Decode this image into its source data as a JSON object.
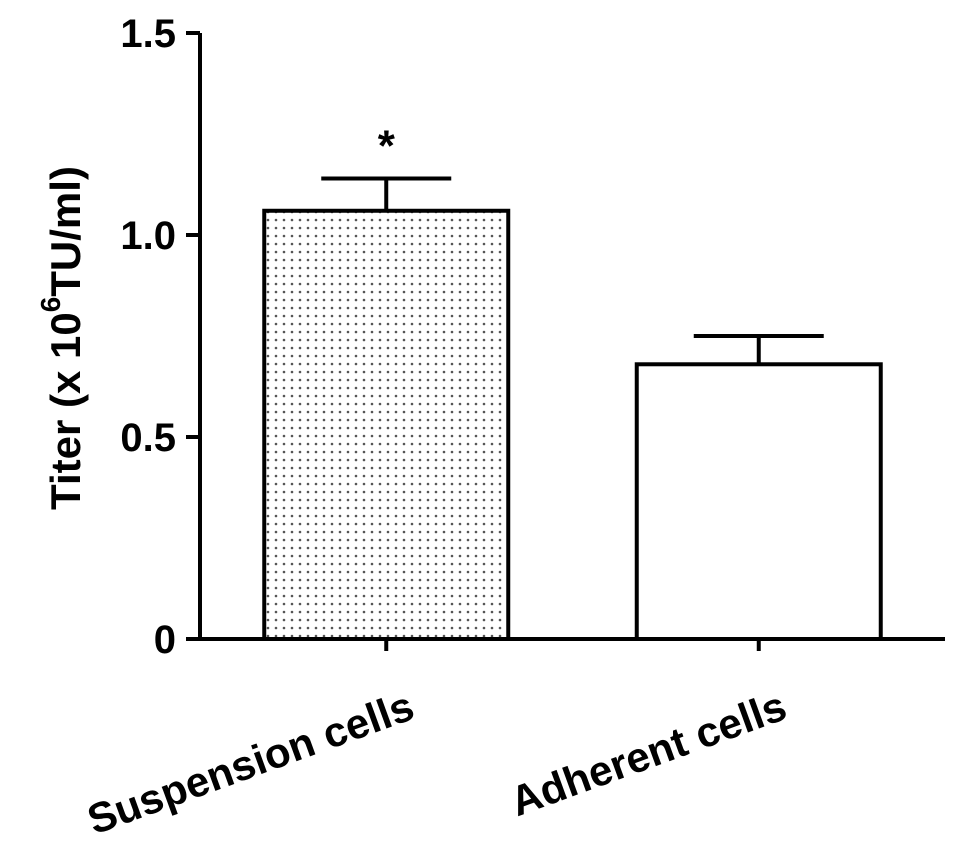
{
  "chart_data": {
    "type": "bar",
    "title": "",
    "xlabel": "",
    "ylabel": {
      "prefix": "Titer (x 10",
      "superscript": "6",
      "suffix": "TU/ml)"
    },
    "categories": [
      "Suspension cells",
      "Adherent cells"
    ],
    "values": [
      1.06,
      0.68
    ],
    "errors": [
      0.08,
      0.07
    ],
    "significance": [
      "*",
      ""
    ],
    "bar_fills": [
      "dotted",
      "none"
    ],
    "ylim": [
      0,
      1.5
    ],
    "yticks": [
      0,
      0.5,
      1.0,
      1.5
    ],
    "ytick_labels": [
      "0",
      "0.5",
      "1.0",
      "1.5"
    ],
    "grid": false,
    "legend": false,
    "colors": {
      "bar_stroke": "#000000",
      "dot": "#555555",
      "background": "#ffffff"
    }
  }
}
